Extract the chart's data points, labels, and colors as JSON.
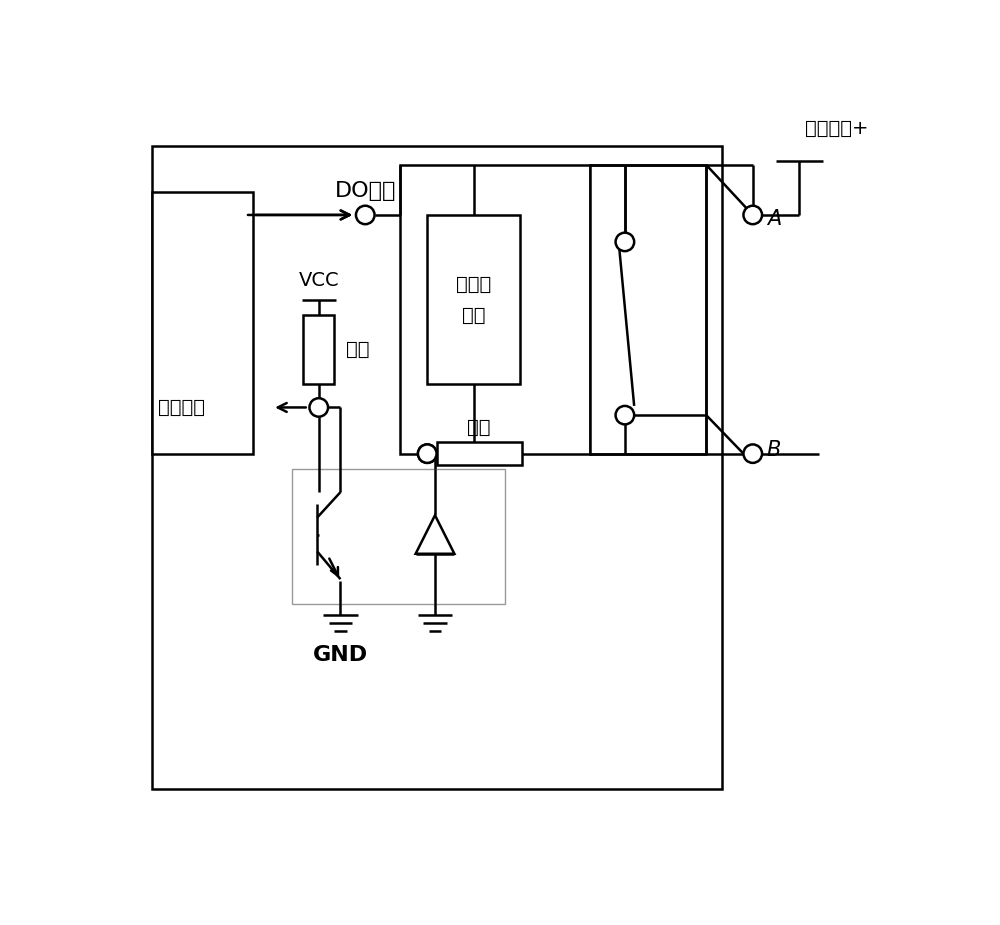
{
  "bg_color": "#ffffff",
  "line_color": "#000000",
  "labels": {
    "query_voltage": "查询电压+",
    "do_control": "DO控制",
    "vcc": "VCC",
    "resistor1": "电阻",
    "readback": "回读监测",
    "coil": "继电器\n线圈",
    "resistor2": "电阻",
    "gnd": "GND",
    "A": "A",
    "B": "B"
  },
  "font_size": 14,
  "lw": 1.8
}
